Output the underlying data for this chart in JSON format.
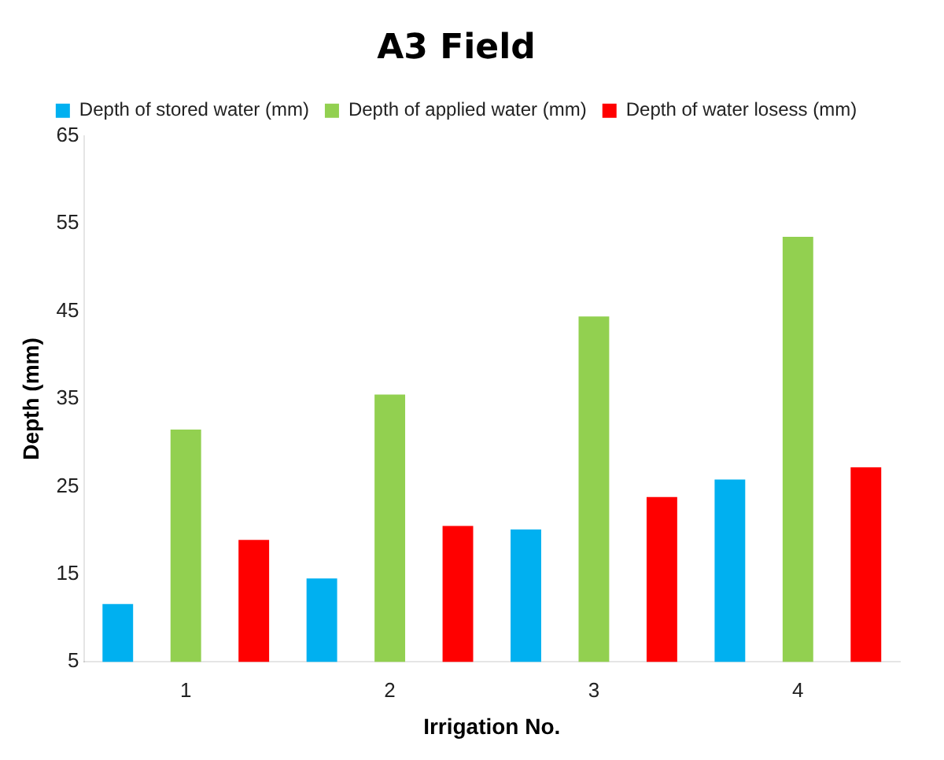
{
  "chart_data": {
    "type": "bar",
    "title": "A3 Field",
    "xlabel": "Irrigation No.",
    "ylabel": "Depth (mm)",
    "categories": [
      "1",
      "2",
      "3",
      "4"
    ],
    "series": [
      {
        "name": "Depth of stored water (mm)",
        "color": "#00b0f0",
        "values": [
          11.6,
          14.5,
          20.1,
          25.8
        ]
      },
      {
        "name": "Depth of applied water (mm)",
        "color": "#92d050",
        "values": [
          31.5,
          35.5,
          44.4,
          53.5
        ]
      },
      {
        "name": "Depth of water losess (mm)",
        "color": "#ff0000",
        "values": [
          18.9,
          20.5,
          23.8,
          27.2
        ]
      }
    ],
    "ylim": [
      5,
      65
    ],
    "yticks": [
      5,
      15,
      25,
      35,
      45,
      55,
      65
    ],
    "grid": false,
    "legend": "top"
  }
}
